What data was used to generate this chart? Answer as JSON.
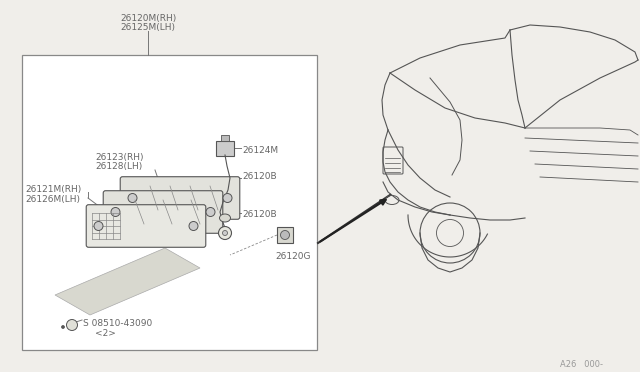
{
  "bg_color": "#f0eeea",
  "box_bg": "#ffffff",
  "text_color": "#666666",
  "line_color": "#777777",
  "dark_line": "#333333",
  "car_line": "#555555",
  "page_code": "A26   000-",
  "label_26120M": "26120M(RH)",
  "label_26125M": "26125M(LH)",
  "label_26123": "26123(RH)",
  "label_26128": "26128(LH)",
  "label_26121M": "26121M(RH)",
  "label_26126M": "26126M(LH)",
  "label_26124M": "26124M",
  "label_26120B": "26120B",
  "label_26120G": "26120G",
  "label_screw1": "S 08510-43090",
  "label_screw2": "<2>",
  "font_size": 6.5
}
